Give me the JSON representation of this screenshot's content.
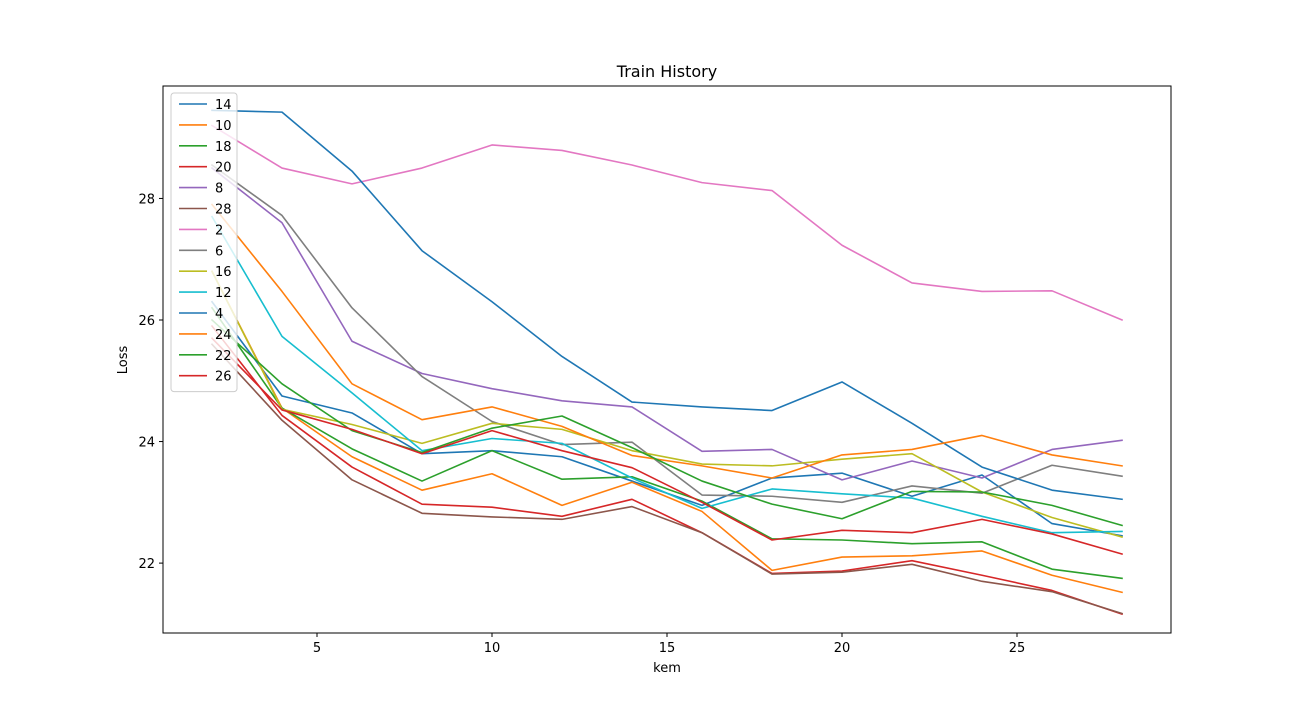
{
  "chart_data": {
    "type": "line",
    "title": "Train History",
    "xlabel": "kem",
    "ylabel": "Loss",
    "xlim": [
      0.6,
      29.4
    ],
    "ylim": [
      20.85,
      29.85
    ],
    "xticks": [
      5,
      10,
      15,
      20,
      25
    ],
    "yticks": [
      22,
      24,
      26,
      28
    ],
    "grid": false,
    "legend_position": "top-left",
    "x": [
      2,
      4,
      6,
      8,
      10,
      12,
      14,
      16,
      18,
      20,
      22,
      24,
      26,
      28
    ],
    "series": [
      {
        "name": "14",
        "color": "#1f77b4",
        "values": [
          26.3,
          24.75,
          24.47,
          23.8,
          23.85,
          23.75,
          23.35,
          22.95,
          23.4,
          23.48,
          23.1,
          23.45,
          22.65,
          22.45
        ]
      },
      {
        "name": "10",
        "color": "#ff7f0e",
        "values": [
          26.8,
          24.55,
          23.75,
          23.2,
          23.47,
          22.95,
          23.33,
          22.85,
          21.88,
          22.1,
          22.12,
          22.2,
          21.8,
          21.52
        ]
      },
      {
        "name": "18",
        "color": "#2ca02c",
        "values": [
          26.2,
          24.55,
          23.88,
          23.35,
          23.85,
          23.38,
          23.42,
          23.02,
          22.4,
          22.38,
          22.32,
          22.35,
          21.9,
          21.75
        ]
      },
      {
        "name": "20",
        "color": "#d62728",
        "values": [
          25.9,
          24.43,
          23.58,
          22.97,
          22.92,
          22.77,
          23.05,
          22.5,
          21.83,
          21.87,
          22.04,
          21.8,
          21.55,
          21.16
        ]
      },
      {
        "name": "8",
        "color": "#9467bd",
        "values": [
          28.5,
          27.6,
          25.65,
          25.12,
          24.87,
          24.67,
          24.57,
          23.84,
          23.87,
          23.37,
          23.68,
          23.4,
          23.87,
          24.02
        ]
      },
      {
        "name": "28",
        "color": "#8c564b",
        "values": [
          25.6,
          24.35,
          23.37,
          22.82,
          22.76,
          22.72,
          22.93,
          22.5,
          21.82,
          21.85,
          21.98,
          21.7,
          21.53,
          21.17
        ]
      },
      {
        "name": "2",
        "color": "#e377c2",
        "values": [
          29.2,
          28.5,
          28.24,
          28.5,
          28.88,
          28.79,
          28.55,
          28.26,
          28.13,
          27.23,
          26.61,
          26.47,
          26.48,
          26.0
        ]
      },
      {
        "name": "6",
        "color": "#7f7f7f",
        "values": [
          28.55,
          27.72,
          26.2,
          25.07,
          24.33,
          23.95,
          23.99,
          23.12,
          23.1,
          23.0,
          23.27,
          23.15,
          23.61,
          23.43
        ]
      },
      {
        "name": "16",
        "color": "#bcbd22",
        "values": [
          26.8,
          24.53,
          24.28,
          23.97,
          24.3,
          24.2,
          23.85,
          23.63,
          23.6,
          23.71,
          23.8,
          23.17,
          22.75,
          22.43
        ]
      },
      {
        "name": "12",
        "color": "#17becf",
        "values": [
          27.7,
          25.73,
          24.8,
          23.85,
          24.05,
          23.97,
          23.4,
          22.9,
          23.22,
          23.14,
          23.07,
          22.77,
          22.5,
          22.52
        ]
      },
      {
        "name": "4",
        "color": "#1f77b4",
        "values": [
          29.45,
          29.42,
          28.45,
          27.14,
          26.3,
          25.4,
          24.65,
          24.57,
          24.51,
          24.98,
          24.3,
          23.58,
          23.2,
          23.05
        ]
      },
      {
        "name": "24",
        "color": "#ff7f0e",
        "values": [
          27.9,
          26.47,
          24.95,
          24.36,
          24.57,
          24.25,
          23.77,
          23.6,
          23.4,
          23.78,
          23.87,
          24.1,
          23.78,
          23.6
        ]
      },
      {
        "name": "22",
        "color": "#2ca02c",
        "values": [
          26.0,
          24.95,
          24.18,
          23.82,
          24.22,
          24.42,
          23.9,
          23.35,
          22.97,
          22.73,
          23.18,
          23.17,
          22.95,
          22.62
        ]
      },
      {
        "name": "26",
        "color": "#d62728",
        "values": [
          25.7,
          24.52,
          24.2,
          23.8,
          24.18,
          23.85,
          23.57,
          23.0,
          22.38,
          22.54,
          22.5,
          22.72,
          22.48,
          22.15
        ]
      }
    ]
  }
}
